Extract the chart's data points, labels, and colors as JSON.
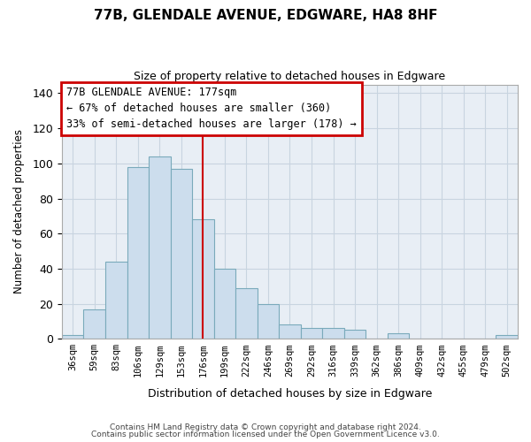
{
  "title": "77B, GLENDALE AVENUE, EDGWARE, HA8 8HF",
  "subtitle": "Size of property relative to detached houses in Edgware",
  "xlabel": "Distribution of detached houses by size in Edgware",
  "ylabel": "Number of detached properties",
  "bar_labels": [
    "36sqm",
    "59sqm",
    "83sqm",
    "106sqm",
    "129sqm",
    "153sqm",
    "176sqm",
    "199sqm",
    "222sqm",
    "246sqm",
    "269sqm",
    "292sqm",
    "316sqm",
    "339sqm",
    "362sqm",
    "386sqm",
    "409sqm",
    "432sqm",
    "455sqm",
    "479sqm",
    "502sqm"
  ],
  "bar_values": [
    2,
    17,
    44,
    98,
    104,
    97,
    68,
    40,
    29,
    20,
    8,
    6,
    6,
    5,
    0,
    3,
    0,
    0,
    0,
    0,
    2
  ],
  "bar_color": "#ccdded",
  "bar_edge_color": "#7aaabb",
  "vline_x_index": 6,
  "vline_color": "#cc0000",
  "annotation_title": "77B GLENDALE AVENUE: 177sqm",
  "annotation_line1": "← 67% of detached houses are smaller (360)",
  "annotation_line2": "33% of semi-detached houses are larger (178) →",
  "annotation_box_edge": "#cc0000",
  "annotation_box_bg": "#ffffff",
  "ylim": [
    0,
    145
  ],
  "yticks": [
    0,
    20,
    40,
    60,
    80,
    100,
    120,
    140
  ],
  "footer1": "Contains HM Land Registry data © Crown copyright and database right 2024.",
  "footer2": "Contains public sector information licensed under the Open Government Licence v3.0.",
  "fig_bg_color": "#ffffff",
  "plot_bg_color": "#e8eef5",
  "grid_color": "#c8d4e0"
}
